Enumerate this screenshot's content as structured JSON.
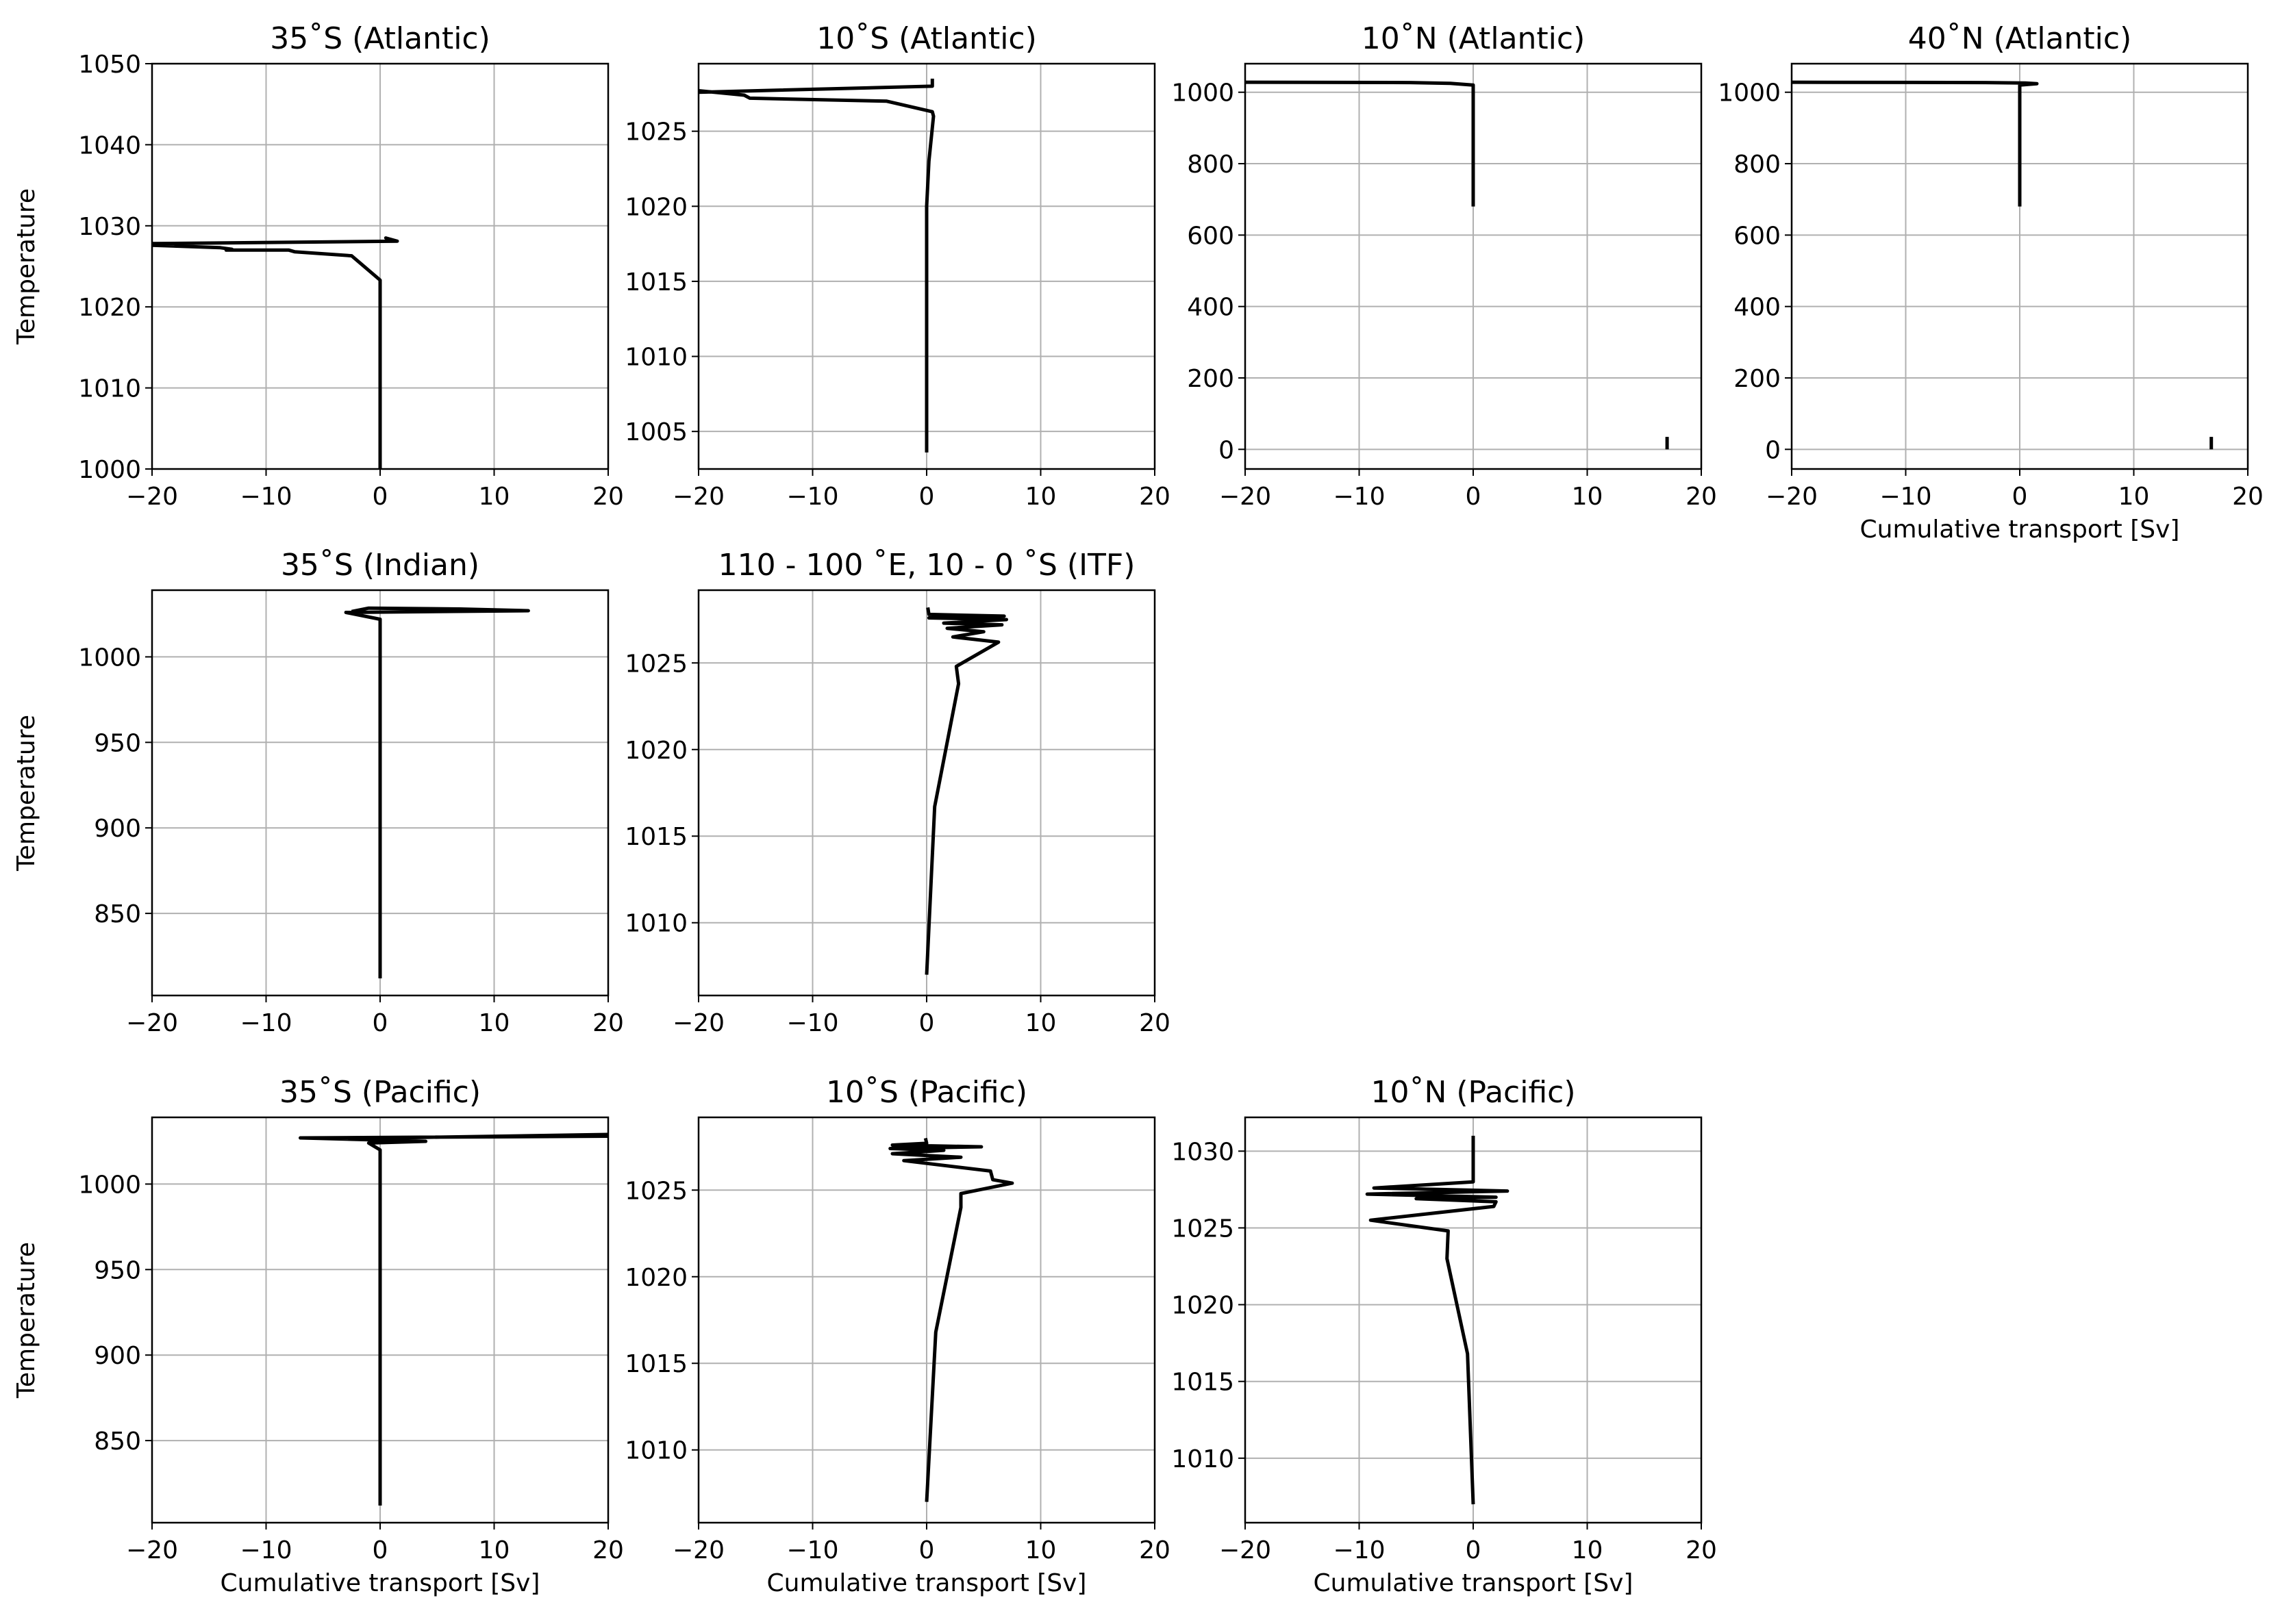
{
  "chart_data": [
    {
      "type": "line",
      "title": "35˚S (Atlantic)",
      "xlabel": "",
      "ylabel": "Temperature",
      "xlim": [
        -20,
        20
      ],
      "ylim": [
        1000,
        1050
      ],
      "xticks": [
        -20,
        -10,
        0,
        10,
        20
      ],
      "yticks": [
        1000,
        1010,
        1020,
        1030,
        1040,
        1050
      ],
      "grid": true,
      "series": [
        {
          "x": [
            0,
            0,
            0,
            -2.5,
            -7.5,
            -8,
            -13.5,
            -13,
            -14,
            -20,
            -20,
            1.5,
            0.5,
            1.2
          ],
          "y": [
            1000,
            1010,
            1023.3,
            1026.3,
            1026.8,
            1027,
            1027,
            1027.1,
            1027.3,
            1027.6,
            1027.8,
            1028.1,
            1028.5,
            1028.2
          ]
        }
      ]
    },
    {
      "type": "line",
      "title": "10˚S (Atlantic)",
      "xlabel": "",
      "ylabel": "",
      "xlim": [
        -20,
        20
      ],
      "ylim": [
        1002.5,
        1029.5
      ],
      "xticks": [
        -20,
        -10,
        0,
        10,
        20
      ],
      "yticks": [
        1005,
        1010,
        1015,
        1020,
        1025
      ],
      "grid": true,
      "series": [
        {
          "x": [
            0,
            0,
            0,
            0.2,
            0.6,
            0.5,
            -3.5,
            -15.5,
            -16,
            -20,
            -20,
            0.5,
            0.5
          ],
          "y": [
            1003.6,
            1010,
            1020,
            1023,
            1026,
            1026.3,
            1027,
            1027.2,
            1027.4,
            1027.7,
            1027.6,
            1028,
            1028.5
          ]
        }
      ]
    },
    {
      "type": "line",
      "title": "10˚N (Atlantic)",
      "xlabel": "",
      "ylabel": "",
      "xlim": [
        -20,
        20
      ],
      "ylim": [
        -55,
        1080
      ],
      "xticks": [
        -20,
        -10,
        0,
        10,
        20
      ],
      "yticks": [
        0,
        200,
        400,
        600,
        800,
        1000
      ],
      "grid": true,
      "series": [
        {
          "x": [
            0,
            0,
            -2,
            -5.5,
            -20
          ],
          "y": [
            680,
            1020,
            1025,
            1027,
            1028
          ]
        },
        {
          "x": [
            17,
            17
          ],
          "y": [
            0,
            35
          ]
        }
      ]
    },
    {
      "type": "line",
      "title": "40˚N (Atlantic)",
      "xlabel": "Cumulative transport [Sv]",
      "ylabel": "",
      "xlim": [
        -20,
        20
      ],
      "ylim": [
        -55,
        1080
      ],
      "xticks": [
        -20,
        -10,
        0,
        10,
        20
      ],
      "yticks": [
        0,
        200,
        400,
        600,
        800,
        1000
      ],
      "grid": true,
      "series": [
        {
          "x": [
            0,
            0,
            1.5,
            0.5,
            -3,
            -20
          ],
          "y": [
            680,
            1020,
            1024,
            1026,
            1027,
            1028
          ]
        },
        {
          "x": [
            16.8,
            16.8
          ],
          "y": [
            0,
            35
          ]
        }
      ]
    },
    {
      "type": "line",
      "title": "35˚S (Indian)",
      "xlabel": "",
      "ylabel": "Temperature",
      "xlim": [
        -20,
        20
      ],
      "ylim": [
        802,
        1039
      ],
      "xticks": [
        -20,
        -10,
        0,
        10,
        20
      ],
      "yticks": [
        850,
        900,
        950,
        1000
      ],
      "grid": true,
      "series": [
        {
          "x": [
            0,
            0,
            0,
            -3,
            13,
            7,
            -1,
            -2.5
          ],
          "y": [
            812,
            900,
            1022,
            1026,
            1027,
            1028,
            1028.5,
            1026.5
          ]
        }
      ]
    },
    {
      "type": "line",
      "title": "110 - 100 ˚E, 10 - 0 ˚S (ITF)",
      "xlabel": "",
      "ylabel": "",
      "xlim": [
        -20,
        20
      ],
      "ylim": [
        1005.8,
        1029.2
      ],
      "xticks": [
        -20,
        -10,
        0,
        10,
        20
      ],
      "yticks": [
        1010,
        1015,
        1020,
        1025
      ],
      "grid": true,
      "series": [
        {
          "x": [
            0,
            0.7,
            2.8,
            2.6,
            6.3,
            2.3,
            5,
            1.8,
            6.6,
            1.5,
            7,
            0.2,
            6.8,
            0.2,
            0.1
          ],
          "y": [
            1007,
            1016.7,
            1023.8,
            1024.8,
            1026.2,
            1026.5,
            1026.8,
            1027,
            1027.2,
            1027.3,
            1027.5,
            1027.6,
            1027.7,
            1027.8,
            1028.2
          ]
        }
      ]
    },
    {
      "type": "line",
      "title": "35˚S (Pacific)",
      "xlabel": "Cumulative transport [Sv]",
      "ylabel": "Temperature",
      "xlim": [
        -20,
        20
      ],
      "ylim": [
        802,
        1039
      ],
      "xticks": [
        -20,
        -10,
        0,
        10,
        20
      ],
      "yticks": [
        850,
        900,
        950,
        1000
      ],
      "grid": true,
      "series": [
        {
          "x": [
            0,
            0,
            0,
            -1,
            4,
            -7,
            20,
            20,
            1,
            -0.5
          ],
          "y": [
            812,
            900,
            1020,
            1024,
            1025,
            1027,
            1028,
            1029,
            1027,
            1026
          ]
        }
      ]
    },
    {
      "type": "line",
      "title": "10˚S (Pacific)",
      "xlabel": "Cumulative transport [Sv]",
      "ylabel": "",
      "xlim": [
        -20,
        20
      ],
      "ylim": [
        1005.8,
        1029.2
      ],
      "xticks": [
        -20,
        -10,
        0,
        10,
        20
      ],
      "yticks": [
        1010,
        1015,
        1020,
        1025
      ],
      "grid": true,
      "series": [
        {
          "x": [
            0,
            0.8,
            3,
            3,
            7.5,
            5.8,
            5.6,
            -2,
            3,
            -3,
            1.5,
            -3.2,
            4.8,
            -3,
            0,
            -0.1
          ],
          "y": [
            1007,
            1016.8,
            1024,
            1024.8,
            1025.4,
            1025.6,
            1026.1,
            1026.7,
            1026.9,
            1027.1,
            1027.3,
            1027.4,
            1027.5,
            1027.6,
            1027.7,
            1028
          ]
        }
      ]
    },
    {
      "type": "line",
      "title": "10˚N (Pacific)",
      "xlabel": "Cumulative transport [Sv]",
      "ylabel": "",
      "xlim": [
        -20,
        20
      ],
      "ylim": [
        1005.8,
        1032.2
      ],
      "xticks": [
        -20,
        -10,
        0,
        10,
        20
      ],
      "yticks": [
        1010,
        1015,
        1020,
        1025,
        1030
      ],
      "grid": true,
      "series": [
        {
          "x": [
            0,
            -0.5,
            -2.3,
            -2.2,
            -9,
            1.8,
            2,
            -5,
            2,
            -9.3,
            3,
            -8.7,
            0,
            0,
            0
          ],
          "y": [
            1007,
            1016.8,
            1023,
            1024.8,
            1025.5,
            1026.4,
            1026.7,
            1026.9,
            1027,
            1027.2,
            1027.4,
            1027.6,
            1028,
            1029,
            1031
          ]
        }
      ]
    }
  ]
}
